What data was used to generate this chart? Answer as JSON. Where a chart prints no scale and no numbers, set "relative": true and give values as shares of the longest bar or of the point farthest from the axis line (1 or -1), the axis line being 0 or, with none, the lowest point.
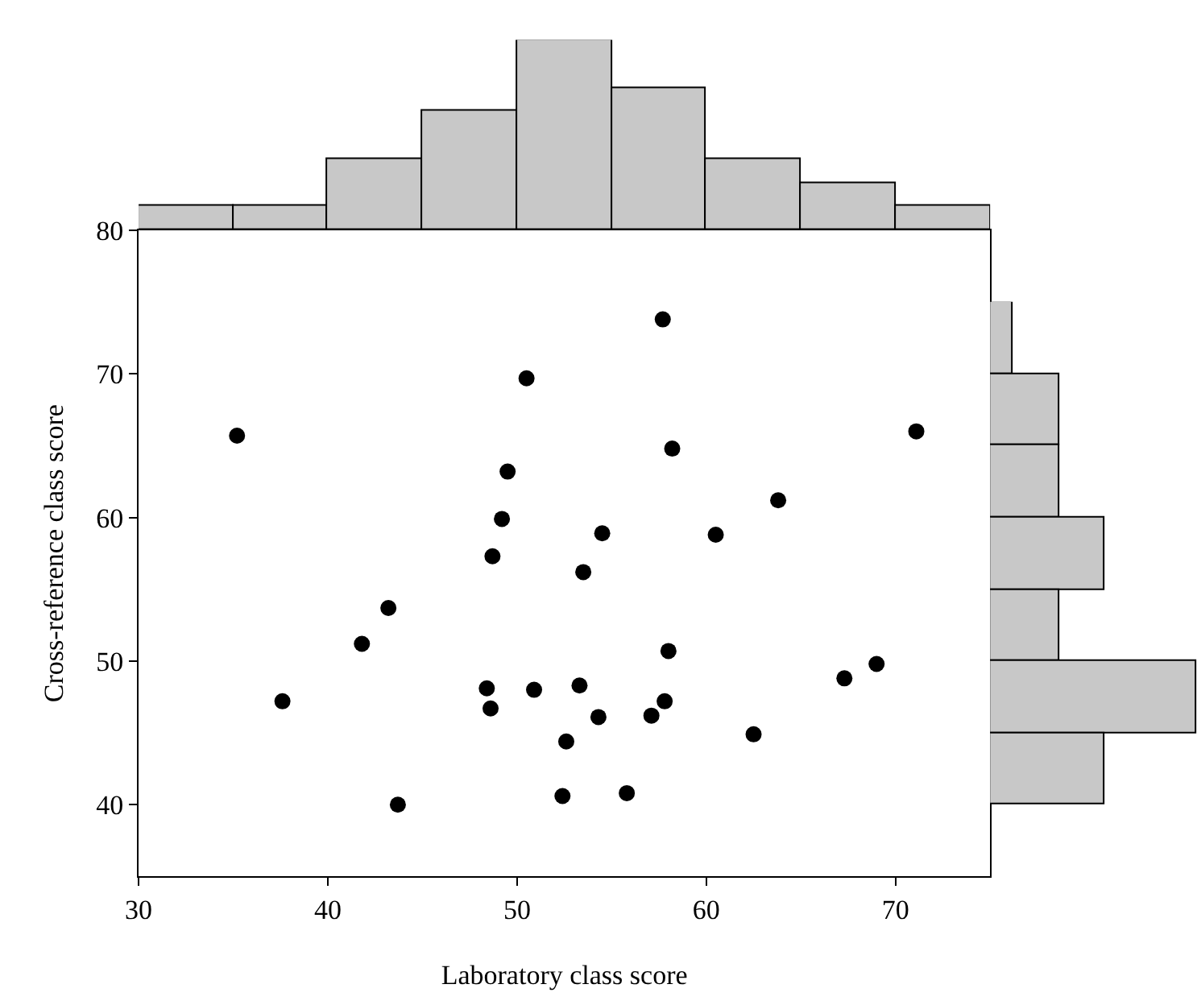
{
  "chart_data": [
    {
      "type": "scatter",
      "xlabel": "Laboratory class score",
      "ylabel": "Cross-reference class score",
      "marker": "circle",
      "grid": false,
      "legend": false,
      "xlim": [
        30,
        75
      ],
      "xticks": [
        30,
        40,
        50,
        60,
        70
      ],
      "ylim": [
        35,
        80
      ],
      "yticks": [
        40,
        50,
        60,
        70,
        80
      ],
      "series": [
        {
          "color": "#000000",
          "x": [
            35.2,
            50.5,
            57.7,
            58.2,
            49.5,
            49.2,
            48.7,
            54.5,
            53.5,
            60.5,
            63.8,
            71.1,
            43.2,
            41.8,
            37.6,
            48.4,
            48.6,
            50.9,
            53.3,
            54.3,
            52.6,
            57.1,
            57.8,
            58.0,
            62.5,
            67.3,
            69.0,
            43.7,
            52.4,
            55.8
          ],
          "values": [
            65.7,
            69.7,
            73.8,
            64.8,
            63.2,
            59.9,
            57.3,
            58.9,
            56.2,
            58.8,
            61.2,
            66.0,
            53.7,
            51.2,
            47.2,
            48.1,
            46.7,
            48.0,
            48.3,
            46.1,
            44.4,
            46.2,
            47.2,
            50.7,
            44.9,
            48.8,
            49.8,
            40.0,
            40.6,
            40.8
          ]
        }
      ]
    },
    {
      "type": "bar",
      "relative": true,
      "color": "#c8c8c8",
      "categories": [
        null,
        null,
        null,
        null,
        null,
        null,
        null,
        null,
        null
      ],
      "values": [
        0.125,
        0.125,
        0.375,
        0.625,
        1,
        0.75,
        0.375,
        0.25,
        0.125
      ]
    },
    {
      "type": "bar",
      "relative": true,
      "orientation": "horizontal",
      "color": "#c8c8c8",
      "categories": [
        null,
        null,
        null,
        null,
        null,
        null,
        null
      ],
      "values": [
        0.111,
        0.333,
        0.333,
        0.556,
        0.333,
        1,
        0.556
      ]
    }
  ]
}
